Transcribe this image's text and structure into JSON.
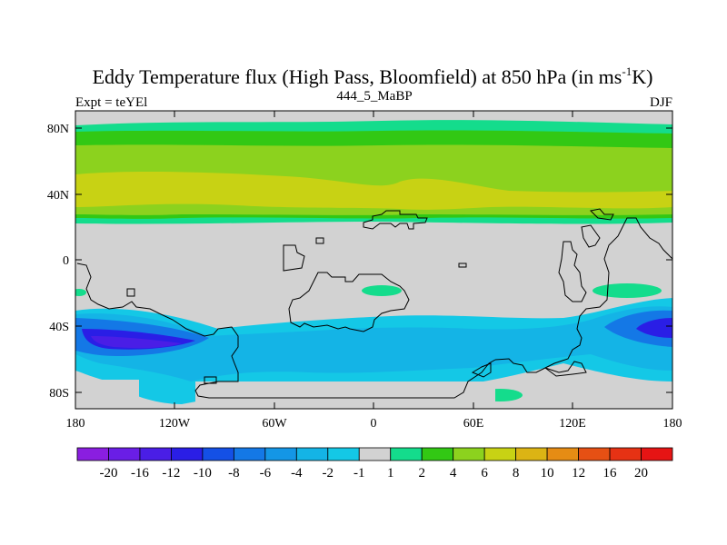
{
  "title": {
    "main": "Eddy Temperature flux (High Pass, Bloomfield) at 850 hPa (in ms",
    "superscript": "-1",
    "end": "K)"
  },
  "subtitle_left": "Expt = teYEl",
  "subtitle_center": "444_5_MaBP",
  "subtitle_right": "DJF",
  "lat_labels": [
    "80N",
    "40N",
    "0",
    "40S",
    "80S"
  ],
  "lon_labels": [
    "180",
    "120W",
    "60W",
    "0",
    "60E",
    "120E",
    "180"
  ],
  "colorbar": {
    "labels": [
      "-20",
      "-16",
      "-12",
      "-10",
      "-8",
      "-6",
      "-4",
      "-2",
      "-1",
      "1",
      "2",
      "4",
      "6",
      "8",
      "10",
      "12",
      "16",
      "20"
    ],
    "colors": [
      "#8a1ee0",
      "#6a1ee6",
      "#4a1ee6",
      "#2a1ee6",
      "#1450e6",
      "#1478e6",
      "#1496e6",
      "#14b4e6",
      "#14c8e6",
      "#d2d2d2",
      "#14dc8c",
      "#32c814",
      "#8cd21e",
      "#c8d214",
      "#dcb414",
      "#e68c14",
      "#e65014",
      "#e63214",
      "#e61414"
    ]
  },
  "colors": {
    "land_outline": "#000000",
    "neutral": "#d2d2d2",
    "light_green": "#8cd21e",
    "yellow_green": "#c8d214",
    "green": "#32c814",
    "teal": "#14dc8c",
    "cyan": "#14c8e6",
    "light_blue": "#14b4e6",
    "blue": "#1478e6",
    "dark_blue": "#2a1ee6",
    "purple": "#4a1ee6"
  }
}
